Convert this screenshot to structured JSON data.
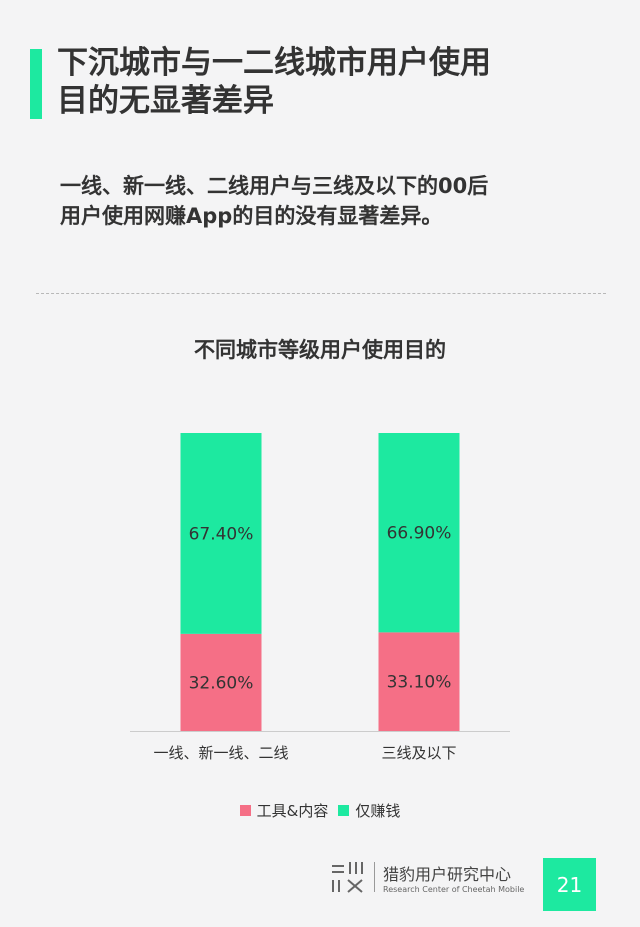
{
  "header": {
    "title_lines": [
      "下沉城市与一二线城市用户使用",
      "目的无显著差异"
    ],
    "subtitle_lines": [
      "一线、新一线、二线用户与三线及以下的00后",
      "用户使用网赚App的目的没有显著差异。"
    ]
  },
  "colors": {
    "accent": "#1de9a0",
    "tools": "#f56f86",
    "earn": "#1de9a0"
  },
  "chart_data": {
    "type": "bar",
    "stacked": true,
    "title": "不同城市等级用户使用目的",
    "categories": [
      "一线、新一线、二线",
      "三线及以下"
    ],
    "series": [
      {
        "name": "工具&内容",
        "values": [
          32.6,
          33.1
        ],
        "labels": [
          "32.60%",
          "33.10%"
        ]
      },
      {
        "name": "仅赚钱",
        "values": [
          67.4,
          66.9
        ],
        "labels": [
          "67.40%",
          "66.90%"
        ]
      }
    ],
    "ylim": [
      0,
      100
    ],
    "grid": false,
    "legend": "bottom"
  },
  "footer": {
    "logo_text": "猎豹用户研究中心",
    "logo_subtext": "Research Center of Cheetah Mobile",
    "page_number": "21"
  }
}
